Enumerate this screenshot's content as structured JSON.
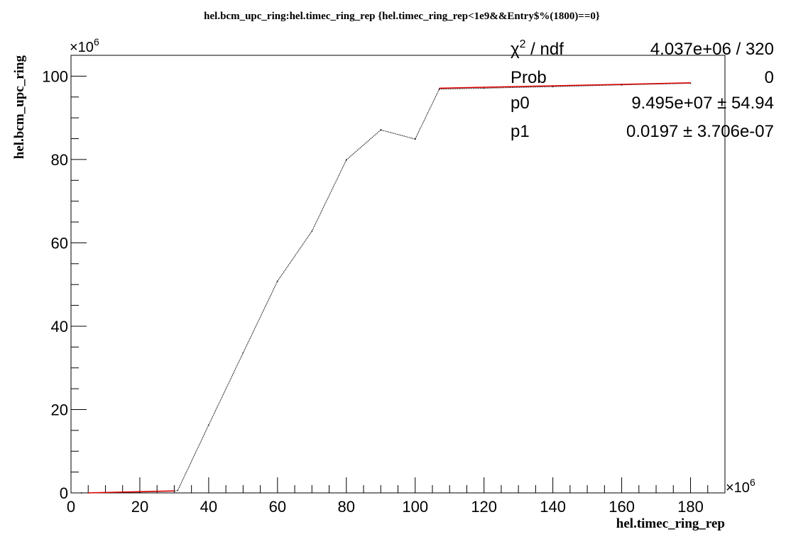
{
  "chart_data": {
    "type": "scatter",
    "title": "hel.bcm_upc_ring:hel.timec_ring_rep {hel.timec_ring_rep<1e9&&Entry$%(1800)==0}",
    "xlabel": "hel.timec_ring_rep",
    "ylabel": "hel.bcm_upc_ring",
    "x_multiplier": "×10",
    "x_multiplier_exp": "6",
    "y_multiplier": "×10",
    "y_multiplier_exp": "6",
    "xlim": [
      0,
      190
    ],
    "ylim": [
      0,
      105
    ],
    "x_ticks": [
      "0",
      "20",
      "40",
      "60",
      "80",
      "100",
      "120",
      "140",
      "160",
      "180"
    ],
    "y_ticks": [
      "0",
      "20",
      "40",
      "60",
      "80",
      "100"
    ],
    "grid": false,
    "series": [
      {
        "color": "#000000",
        "x": [
          3,
          10,
          20,
          30,
          31,
          40,
          50,
          60,
          70,
          80,
          90,
          100,
          107,
          120,
          140,
          160,
          180
        ],
        "y": [
          0,
          0.05,
          0.2,
          0.4,
          0.6,
          16.3,
          33.6,
          50.8,
          62.8,
          79.9,
          87.1,
          84.9,
          96.9,
          97.1,
          97.5,
          97.9,
          98.3
        ]
      }
    ],
    "fit_lines": [
      {
        "color": "#e00000",
        "x": [
          5,
          30
        ],
        "y": [
          0.0,
          0.5
        ]
      },
      {
        "color": "#e00000",
        "x": [
          107,
          180
        ],
        "y": [
          97.1,
          98.4
        ]
      }
    ],
    "stats_box": {
      "rows": [
        {
          "label": "χ",
          "label_sup": "2",
          "label_rest": " / ndf",
          "value": "4.037e+06 / 320"
        },
        {
          "label": "Prob",
          "label_sup": "",
          "label_rest": "",
          "value": "0"
        },
        {
          "label": "p0",
          "label_sup": "",
          "label_rest": "",
          "value": "9.495e+07 ± 54.94"
        },
        {
          "label": "p1",
          "label_sup": "",
          "label_rest": "",
          "value": "0.0197 ± 3.706e-07"
        }
      ]
    }
  }
}
